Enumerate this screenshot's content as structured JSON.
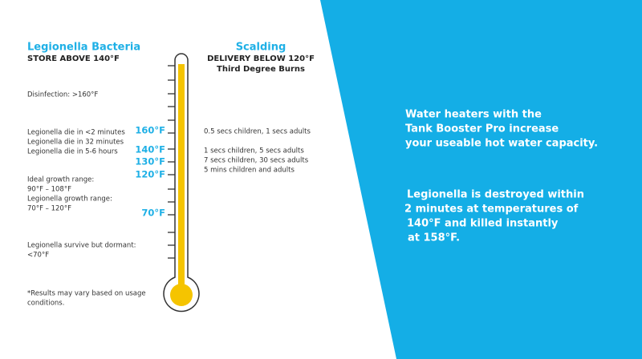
{
  "left_header": {
    "title": "Legionella Bacteria",
    "subtitle": "STORE ABOVE 140°F"
  },
  "right_header": {
    "title": "Scalding",
    "subtitle": "DELIVERY BELOW 120°F",
    "note": "Third Degree Burns"
  },
  "left_notes": [
    [
      "Disinfection: >160°F"
    ],
    [
      "Legionella die in <2 minutes",
      "Legionella die in 32 minutes",
      "Legionella die in 5-6 hours"
    ],
    [
      "Ideal growth range:",
      "90°F – 108°F",
      "Legionella growth range:",
      "70°F – 120°F"
    ],
    [
      "Legionella survive but dormant:",
      "<70°F"
    ],
    [
      "*Results may vary based on usage",
      "conditions."
    ]
  ],
  "thermometer_labels": [
    "160°F",
    "140°F",
    "130°F",
    "120°F",
    "70°F"
  ],
  "right_notes": [
    "0.5 secs children, 1 secs adults",
    "1 secs children, 5 secs adults",
    "7 secs children, 30 secs adults",
    "5 mins children and adults"
  ],
  "panel": {
    "paragraphs": [
      [
        "Water heaters with the",
        "Tank Booster Pro increase",
        "your useable hot water capacity."
      ],
      [
        "Legionella is destroyed within",
        "2 minutes at temperatures of",
        "140°F and killed instantly",
        "at 158°F."
      ]
    ]
  }
}
